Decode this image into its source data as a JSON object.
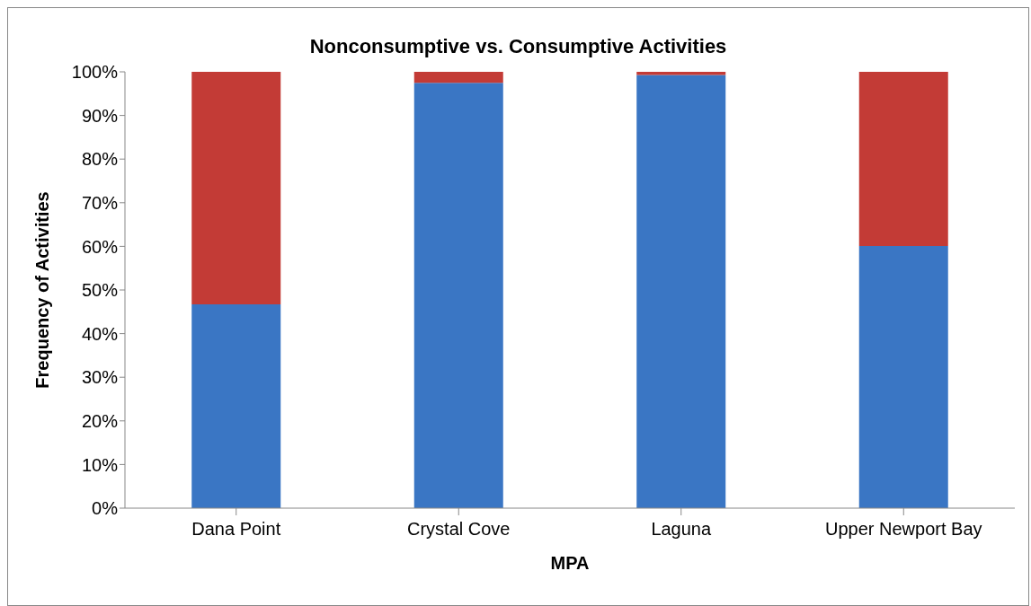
{
  "chart_data": {
    "type": "bar",
    "title": "Nonconsumptive vs. Consumptive Activities",
    "xlabel": "MPA",
    "ylabel": "Frequency of Activities",
    "categories": [
      "Dana Point",
      "Crystal Cove",
      "Laguna",
      "Upper Newport Bay"
    ],
    "stacked": true,
    "series": [
      {
        "color": "#3a76c4",
        "values": [
          46.7,
          97.5,
          99.3,
          60.1
        ]
      },
      {
        "color": "#c33b36",
        "values": [
          53.3,
          2.5,
          0.7,
          39.9
        ]
      }
    ],
    "ylim": [
      0,
      100
    ],
    "yticks": [
      {
        "value": 0,
        "label": "0%"
      },
      {
        "value": 10,
        "label": "10%"
      },
      {
        "value": 20,
        "label": "20%"
      },
      {
        "value": 30,
        "label": "30%"
      },
      {
        "value": 40,
        "label": "40%"
      },
      {
        "value": 50,
        "label": "50%"
      },
      {
        "value": 60,
        "label": "60%"
      },
      {
        "value": 70,
        "label": "70%"
      },
      {
        "value": 80,
        "label": "80%"
      },
      {
        "value": 90,
        "label": "90%"
      },
      {
        "value": 100,
        "label": "100%"
      }
    ],
    "grid": false,
    "legend": false
  }
}
